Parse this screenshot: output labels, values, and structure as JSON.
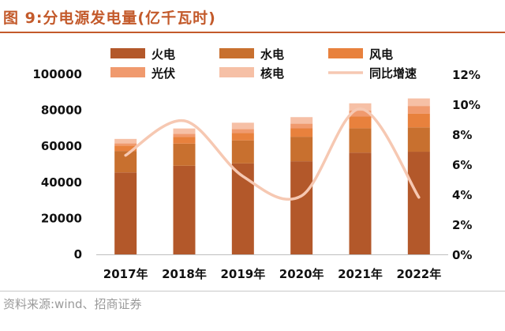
{
  "header": {
    "title": "图 9:分电源发电量(亿千瓦时)"
  },
  "footer": {
    "source": "资料来源:wind、招商证券"
  },
  "chart_data": {
    "type": "bar",
    "stacked": true,
    "title": "图 9:分电源发电量(亿千瓦时)",
    "categories": [
      "2017年",
      "2018年",
      "2019年",
      "2020年",
      "2021年",
      "2022年"
    ],
    "series": [
      {
        "name": "火电",
        "color": "#b3582a",
        "values": [
          45500,
          49200,
          50500,
          51700,
          56500,
          57000
        ]
      },
      {
        "name": "水电",
        "color": "#c8702f",
        "values": [
          11900,
          12300,
          12800,
          13600,
          13500,
          13500
        ]
      },
      {
        "name": "风电",
        "color": "#e8813d",
        "values": [
          3000,
          3650,
          4050,
          4650,
          6550,
          7600
        ]
      },
      {
        "name": "光伏",
        "color": "#f09a6e",
        "values": [
          1200,
          1800,
          2250,
          2600,
          3250,
          4300
        ]
      },
      {
        "name": "核电",
        "color": "#f6c0a6",
        "values": [
          2500,
          2950,
          3500,
          3650,
          4070,
          4180
        ]
      }
    ],
    "line_series": {
      "name": "同比增速",
      "color": "#f6c8b2",
      "axis": "right",
      "values": [
        6.6,
        8.9,
        5.2,
        3.9,
        9.7,
        3.8
      ]
    },
    "y_left": {
      "min": 0,
      "max": 100000,
      "ticks": [
        "0",
        "20000",
        "40000",
        "60000",
        "80000",
        "100000"
      ]
    },
    "y_right": {
      "min": 0,
      "max": 12,
      "ticks": [
        "0%",
        "2%",
        "4%",
        "6%",
        "8%",
        "10%",
        "12%"
      ]
    },
    "legend_position": "top"
  }
}
